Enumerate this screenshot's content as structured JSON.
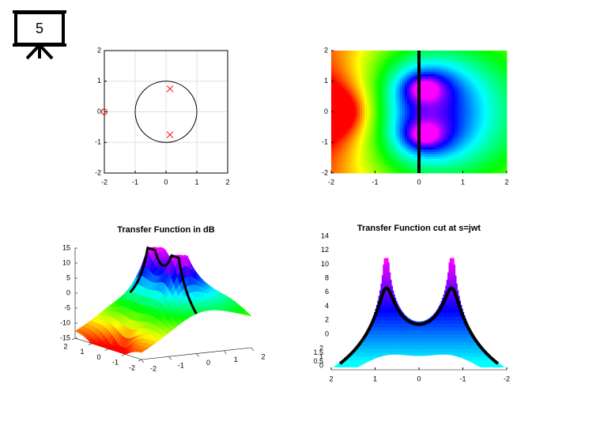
{
  "icon_label": "5",
  "chart_data": [
    {
      "type": "pole-zero",
      "xlim": [
        -2,
        2
      ],
      "ylim": [
        -2,
        2
      ],
      "xticks": [
        -2,
        -1,
        0,
        1,
        2
      ],
      "yticks": [
        -2,
        -1,
        0,
        1,
        2
      ],
      "grid": true,
      "color": "#ff0000",
      "poles": {
        "x": [
          0.13,
          0.13
        ],
        "y": [
          0.75,
          -0.75
        ]
      },
      "zeros": {
        "x": [
          -2
        ],
        "y": [
          0
        ]
      }
    },
    {
      "type": "heatmap",
      "xlim": [
        -2,
        2
      ],
      "ylim": [
        -2,
        2
      ],
      "xticks": [
        -2,
        -1,
        0,
        1,
        2
      ],
      "yticks": [
        -2,
        -1,
        0,
        1,
        2
      ],
      "cut": 0
    },
    {
      "type": "surface",
      "title": "Transfer Function in dB",
      "xlim": [
        -2,
        2
      ],
      "ylim": [
        -2,
        2
      ],
      "zlim": [
        -15,
        15
      ],
      "xticks": [
        -2,
        -1,
        0,
        1,
        2
      ],
      "yticks": [
        2,
        1,
        0,
        -1,
        -2
      ],
      "zticks": [
        15,
        10,
        5,
        0,
        -5,
        -10,
        -15
      ]
    },
    {
      "type": "surface-cut",
      "title": "Transfer Function cut at s=jwt",
      "xlim": [
        2,
        -2
      ],
      "xticks": [
        2,
        1,
        0,
        -1,
        -2
      ],
      "zlim": [
        0,
        14
      ],
      "zticks": [
        14,
        12,
        10,
        8,
        6,
        4,
        2,
        0
      ],
      "dlim": [
        0,
        2
      ],
      "dticks": [
        2,
        1.5,
        1,
        0.5,
        0
      ]
    }
  ]
}
